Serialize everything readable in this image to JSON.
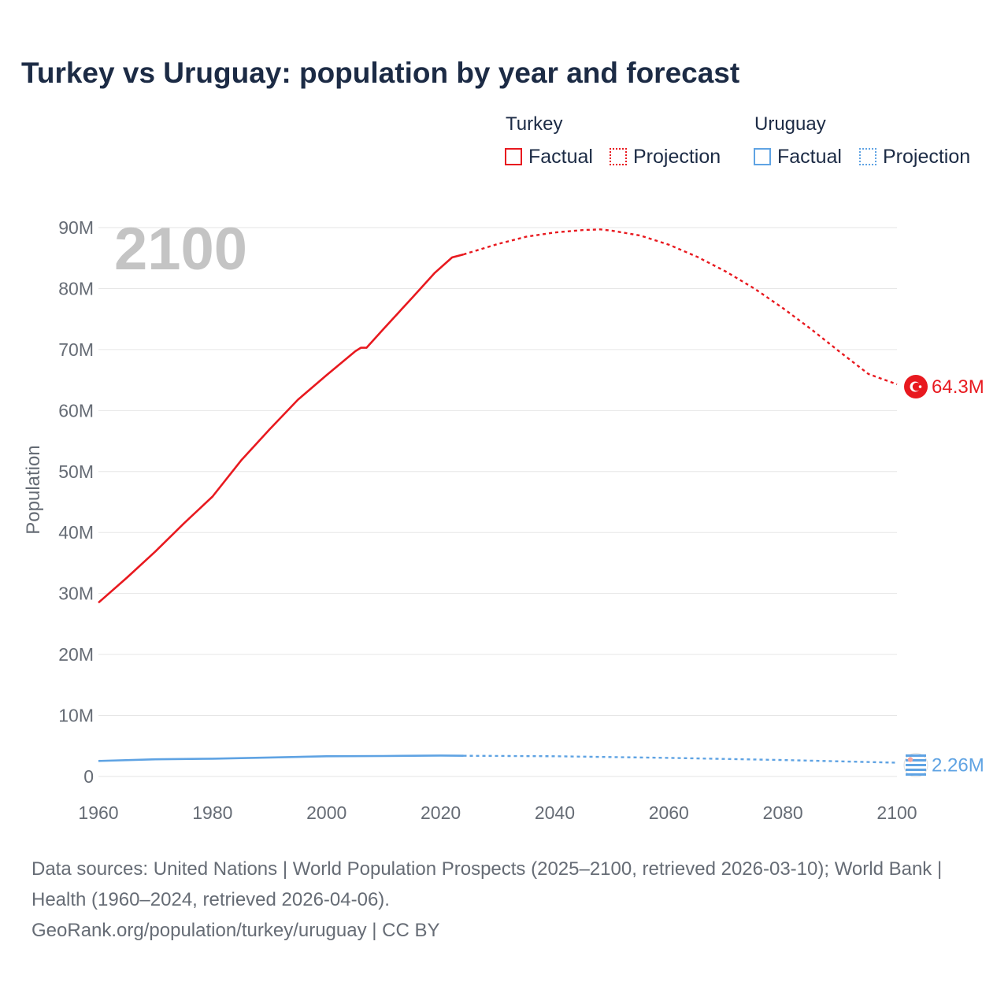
{
  "title": "Turkey vs Uruguay: population by year and forecast",
  "legend": {
    "groups": [
      {
        "name": "Turkey",
        "factual_label": "Factual",
        "projection_label": "Projection",
        "color": "#e8191f"
      },
      {
        "name": "Uruguay",
        "factual_label": "Factual",
        "projection_label": "Projection",
        "color": "#5fa3e3"
      }
    ]
  },
  "footer": {
    "sources": "Data sources: United Nations | World Population Prospects (2025–2100, retrieved 2026-03-10); World Bank | Health (1960–2024, retrieved 2026-04-06).",
    "credit": "GeoRank.org/population/turkey/uruguay | CC BY"
  },
  "chart_data": {
    "type": "line",
    "title": "Turkey vs Uruguay: population by year and forecast",
    "xlabel": "",
    "ylabel": "Population",
    "xlim": [
      1960,
      2100
    ],
    "ylim": [
      0,
      90000000
    ],
    "x_ticks": [
      "1960",
      "1980",
      "2000",
      "2020",
      "2040",
      "2060",
      "2080",
      "2100"
    ],
    "y_ticks": [
      "0",
      "10M",
      "20M",
      "30M",
      "40M",
      "50M",
      "60M",
      "70M",
      "80M",
      "90M"
    ],
    "year_display": "2100",
    "grid": true,
    "projection_start": 2024,
    "series": [
      {
        "name": "Turkey",
        "color": "#e8191f",
        "end_label": "64.3M",
        "factual": {
          "x": [
            1960,
            1965,
            1970,
            1975,
            1980,
            1985,
            1990,
            1995,
            2000,
            2005,
            2006,
            2007,
            2010,
            2015,
            2019,
            2022,
            2024
          ],
          "y": [
            28500000,
            32600000,
            36900000,
            41500000,
            45900000,
            51800000,
            56900000,
            61800000,
            65800000,
            69700000,
            70300000,
            70300000,
            73400000,
            78500000,
            82600000,
            85100000,
            85600000
          ]
        },
        "projection": {
          "x": [
            2024,
            2030,
            2035,
            2040,
            2045,
            2048,
            2050,
            2055,
            2060,
            2065,
            2070,
            2075,
            2080,
            2085,
            2090,
            2095,
            2100
          ],
          "y": [
            85600000,
            87300000,
            88500000,
            89200000,
            89600000,
            89700000,
            89500000,
            88700000,
            87200000,
            85200000,
            82800000,
            80000000,
            76800000,
            73300000,
            69600000,
            66000000,
            64300000
          ]
        }
      },
      {
        "name": "Uruguay",
        "color": "#5fa3e3",
        "end_label": "2.26M",
        "factual": {
          "x": [
            1960,
            1970,
            1980,
            1990,
            2000,
            2010,
            2020,
            2024
          ],
          "y": [
            2540000,
            2810000,
            2920000,
            3110000,
            3320000,
            3360000,
            3430000,
            3390000
          ]
        },
        "projection": {
          "x": [
            2024,
            2040,
            2060,
            2080,
            2100
          ],
          "y": [
            3390000,
            3320000,
            3050000,
            2700000,
            2260000
          ]
        }
      }
    ]
  }
}
